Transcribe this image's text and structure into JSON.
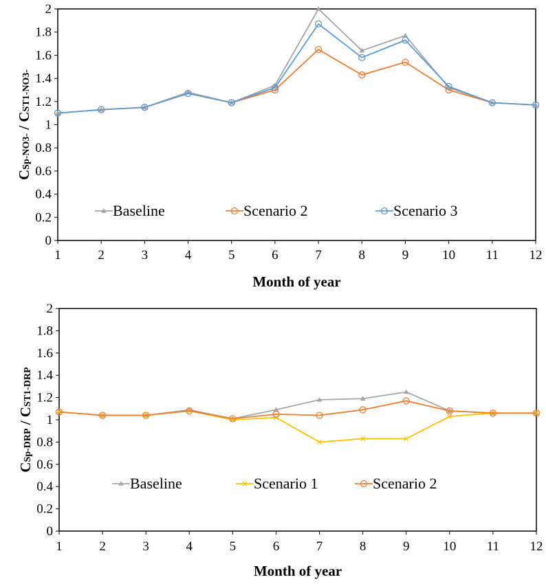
{
  "chart_data": [
    {
      "type": "line",
      "xlabel": "Month of year",
      "ylabel_parts": [
        "C",
        "Sp-NO3-",
        " / C",
        "ST1-NO3-"
      ],
      "x": [
        1,
        2,
        3,
        4,
        5,
        6,
        7,
        8,
        9,
        10,
        11,
        12
      ],
      "ylim": [
        0,
        2
      ],
      "yticks": [
        0,
        0.2,
        0.4,
        0.6,
        0.8,
        1,
        1.2,
        1.4,
        1.6,
        1.8,
        2
      ],
      "ytick_labels": [
        "0",
        "0.2",
        "0.4",
        "0.6",
        "0.8",
        "1",
        "1.2",
        "1.4",
        "1.6",
        "1.8",
        "2"
      ],
      "xtick_labels": [
        "1",
        "2",
        "3",
        "4",
        "5",
        "6",
        "7",
        "8",
        "9",
        "10",
        "11",
        "12"
      ],
      "grid": false,
      "legend": "inside-lower",
      "series": [
        {
          "name": "Baseline",
          "color": "#a5a5a5",
          "marker": "triangle",
          "values": [
            1.1,
            1.13,
            1.15,
            1.28,
            1.19,
            1.34,
            2.0,
            1.64,
            1.77,
            1.32,
            1.19,
            1.17
          ]
        },
        {
          "name": "Scenario 2",
          "color": "#ed7d31",
          "marker": "circle",
          "values": [
            1.1,
            1.13,
            1.15,
            1.27,
            1.19,
            1.3,
            1.65,
            1.43,
            1.54,
            1.3,
            1.19,
            1.17
          ]
        },
        {
          "name": "Scenario 3",
          "color": "#5b9bd5",
          "marker": "circle",
          "values": [
            1.1,
            1.13,
            1.15,
            1.27,
            1.19,
            1.32,
            1.87,
            1.58,
            1.73,
            1.33,
            1.19,
            1.17
          ]
        }
      ]
    },
    {
      "type": "line",
      "xlabel": "Month of year",
      "ylabel_parts": [
        "C",
        "Sp-DRP",
        " / C",
        "ST1-DRP"
      ],
      "x": [
        1,
        2,
        3,
        4,
        5,
        6,
        7,
        8,
        9,
        10,
        11,
        12
      ],
      "ylim": [
        0,
        2
      ],
      "yticks": [
        0,
        0.2,
        0.4,
        0.6,
        0.8,
        1,
        1.2,
        1.4,
        1.6,
        1.8,
        2
      ],
      "ytick_labels": [
        "0",
        "0.2",
        "0.4",
        "0.6",
        "0.8",
        "1",
        "1.2",
        "1.4",
        "1.6",
        "1.8",
        "2"
      ],
      "xtick_labels": [
        "1",
        "2",
        "3",
        "4",
        "5",
        "6",
        "7",
        "8",
        "9",
        "10",
        "11",
        "12"
      ],
      "grid": false,
      "legend": "inside-lower",
      "series": [
        {
          "name": "Baseline",
          "color": "#a5a5a5",
          "marker": "triangle",
          "values": [
            1.07,
            1.04,
            1.04,
            1.09,
            1.01,
            1.09,
            1.18,
            1.19,
            1.25,
            1.08,
            1.06,
            1.06
          ]
        },
        {
          "name": "Scenario 1",
          "color": "#ffc000",
          "marker": "cross",
          "values": [
            1.07,
            1.04,
            1.04,
            1.08,
            1.0,
            1.02,
            0.8,
            0.83,
            0.83,
            1.03,
            1.06,
            1.06
          ]
        },
        {
          "name": "Scenario 2",
          "color": "#ed7d31",
          "marker": "circle",
          "values": [
            1.07,
            1.04,
            1.04,
            1.08,
            1.01,
            1.05,
            1.04,
            1.09,
            1.17,
            1.08,
            1.06,
            1.06
          ]
        }
      ]
    }
  ]
}
